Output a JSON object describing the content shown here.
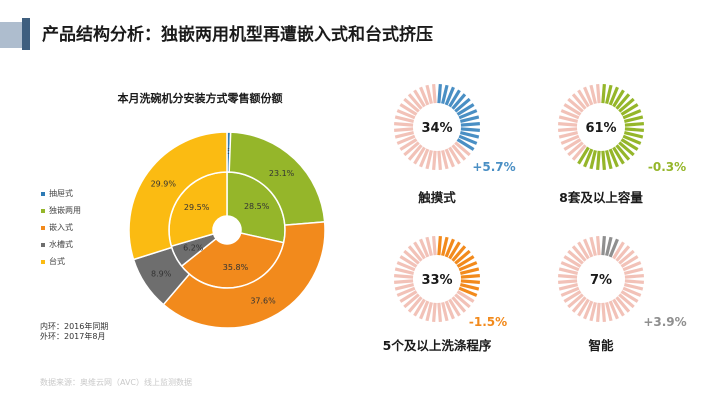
{
  "slide": {
    "title": "产品结构分析：独嵌两用机型再遭嵌入式和台式挤压",
    "note_inner": "内环：2016年同期",
    "note_outer": "外环：2017年8月",
    "source": "数据来源：奥维云网（AVC）线上监测数据"
  },
  "colors": {
    "accent_dark": "#3f5f7f",
    "accent_light": "#aebdce",
    "ring_unfilled": "#f2c2b8",
    "up": "#4a8fc4",
    "down_green": "#95b62a",
    "down_orange": "#f28a1c",
    "up_gray": "#8f8f8f"
  },
  "chart_data": [
    {
      "type": "pie",
      "subtype": "double-donut",
      "title": "本月洗碗机分安装方式零售额份额",
      "categories": [
        "抽屉式",
        "独嵌两用",
        "嵌入式",
        "水槽式",
        "台式"
      ],
      "colors": [
        "#2e7bb5",
        "#95b62a",
        "#f28a1c",
        "#6e6e6e",
        "#fbbb12"
      ],
      "series": [
        {
          "name": "内环：2016年同期",
          "values": [
            0.0,
            28.5,
            35.8,
            6.2,
            29.5
          ],
          "labels": [
            "0.0%",
            "28.5%",
            "35.8%",
            "6.2%",
            "29.5%"
          ]
        },
        {
          "name": "外环：2017年8月",
          "values": [
            0.6,
            23.1,
            37.6,
            8.9,
            29.9
          ],
          "labels": [
            "0.6%",
            "23.1%",
            "37.6%",
            "8.9%",
            "29.9%"
          ]
        }
      ],
      "legend": "left"
    },
    {
      "type": "gauge",
      "items": [
        {
          "label": "触摸式",
          "value": 34,
          "value_label": "34%",
          "change": "+5.7%",
          "color": "#4a8fc4",
          "change_color": "#4a8fc4"
        },
        {
          "label": "8套及以上容量",
          "value": 61,
          "value_label": "61%",
          "change": "-0.3%",
          "color": "#95b62a",
          "change_color": "#95b62a"
        },
        {
          "label": "5个及以上洗涤程序",
          "value": 33,
          "value_label": "33%",
          "change": "-1.5%",
          "color": "#f28a1c",
          "change_color": "#f28a1c"
        },
        {
          "label": "智能",
          "value": 7,
          "value_label": "7%",
          "change": "+3.9%",
          "color": "#8f8f8f",
          "change_color": "#8f8f8f"
        }
      ]
    }
  ]
}
